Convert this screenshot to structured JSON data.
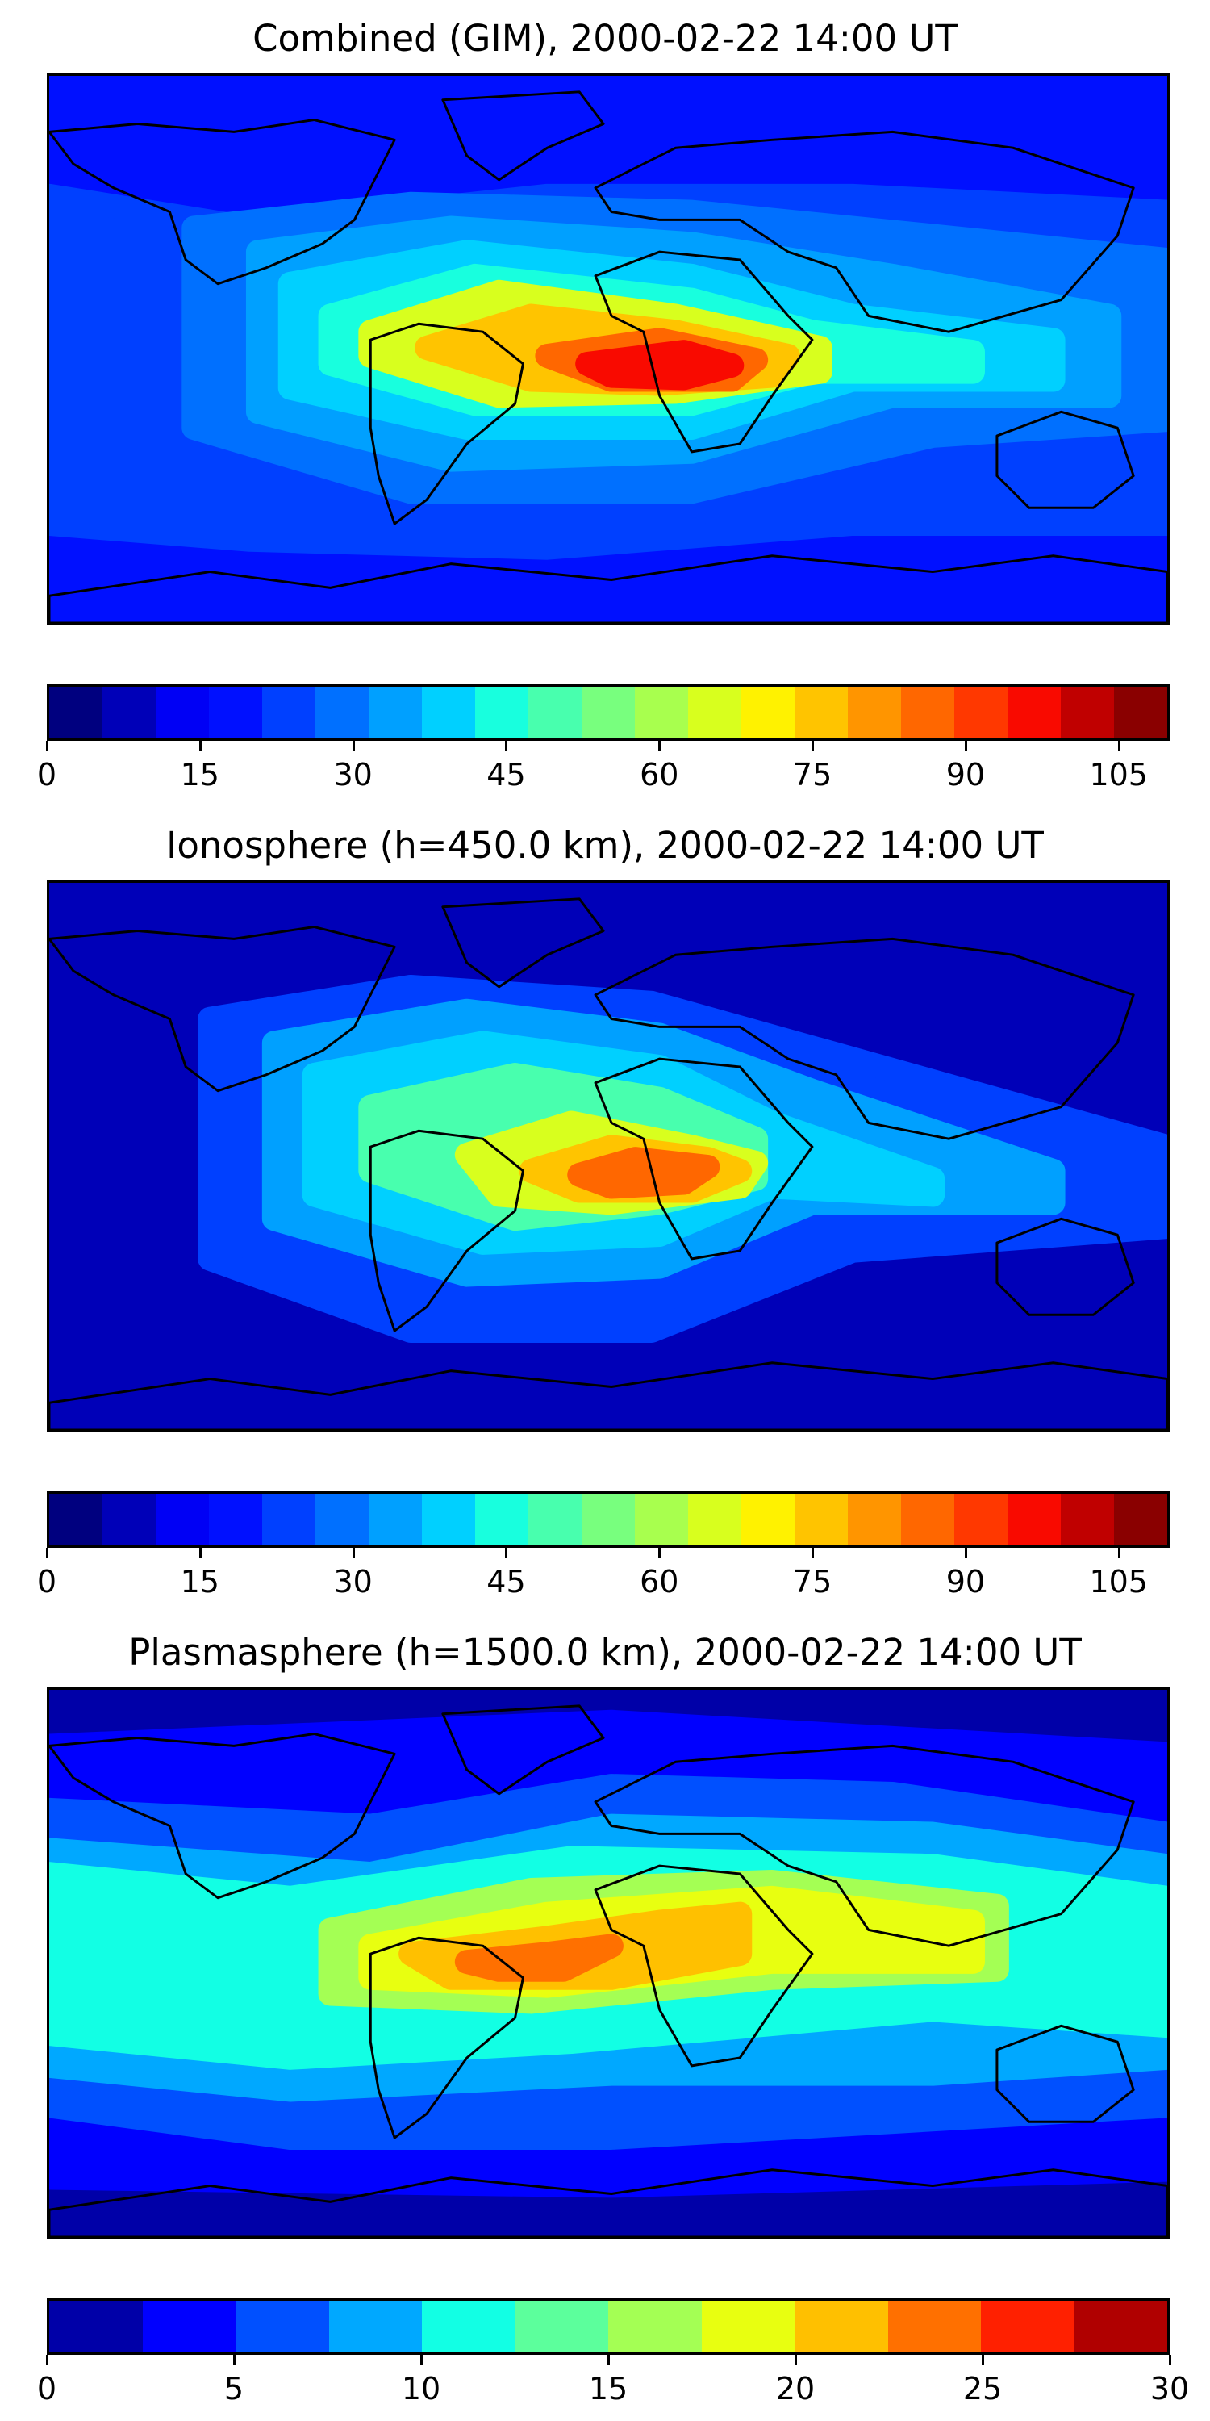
{
  "panels": [
    {
      "title": "Combined (GIM), 2000-02-22 14:00 UT",
      "field": "combined",
      "colorbar": {
        "min": 0,
        "max": 110,
        "ticks": [
          "0",
          "15",
          "30",
          "45",
          "60",
          "75",
          "90",
          "105"
        ],
        "colors": [
          "#00007f",
          "#0000b8",
          "#0000f5",
          "#0010ff",
          "#0040ff",
          "#0070ff",
          "#00a0ff",
          "#00d0ff",
          "#18ffde",
          "#48ffae",
          "#78ff7e",
          "#a8ff4e",
          "#d8ff1e",
          "#fff200",
          "#ffc400",
          "#ff9500",
          "#ff6700",
          "#ff3800",
          "#f90a00",
          "#c00000",
          "#8a0000"
        ]
      }
    },
    {
      "title": "Ionosphere  (h=450.0 km), 2000-02-22 14:00 UT",
      "field": "ionosphere",
      "colorbar": {
        "min": 0,
        "max": 110,
        "ticks": [
          "0",
          "15",
          "30",
          "45",
          "60",
          "75",
          "90",
          "105"
        ],
        "colors": [
          "#00007f",
          "#0000b8",
          "#0000f5",
          "#0010ff",
          "#0040ff",
          "#0070ff",
          "#00a0ff",
          "#00d0ff",
          "#18ffde",
          "#48ffae",
          "#78ff7e",
          "#a8ff4e",
          "#d8ff1e",
          "#fff200",
          "#ffc400",
          "#ff9500",
          "#ff6700",
          "#ff3800",
          "#f90a00",
          "#c00000",
          "#8a0000"
        ]
      }
    },
    {
      "title": "Plasmasphere (h=1500.0 km), 2000-02-22 14:00 UT",
      "field": "plasmasphere",
      "colorbar": {
        "min": 0,
        "max": 30,
        "ticks": [
          "0",
          "5",
          "10",
          "15",
          "20",
          "25",
          "30"
        ],
        "colors": [
          "#0000a8",
          "#0000ff",
          "#0050ff",
          "#00a8ff",
          "#12ffe4",
          "#5cff9c",
          "#a4ff54",
          "#e8ff10",
          "#ffc000",
          "#ff7000",
          "#ff2000",
          "#b00000"
        ]
      }
    }
  ]
}
